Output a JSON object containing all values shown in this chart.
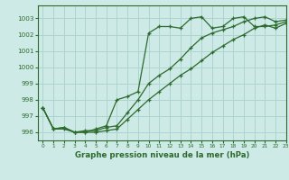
{
  "background_color": "#ceeae7",
  "grid_color": "#add4d0",
  "line_color": "#2d6a2d",
  "series": {
    "line1": [
      997.5,
      996.2,
      996.3,
      996.0,
      996.0,
      996.2,
      996.4,
      998.0,
      998.2,
      998.5,
      1002.1,
      1002.5,
      1002.5,
      1002.4,
      1003.0,
      1003.1,
      1002.4,
      1002.5,
      1003.0,
      1003.1,
      1002.5,
      1002.5,
      1002.6,
      1002.8
    ],
    "line2": [
      997.5,
      996.2,
      996.3,
      996.0,
      996.1,
      996.1,
      996.3,
      996.4,
      997.2,
      998.0,
      999.0,
      999.5,
      999.9,
      1000.5,
      1001.2,
      1001.8,
      1002.1,
      1002.3,
      1002.5,
      1002.8,
      1003.0,
      1003.1,
      1002.8,
      1002.9
    ],
    "line3": [
      997.5,
      996.2,
      996.2,
      996.0,
      996.0,
      996.0,
      996.1,
      996.2,
      996.8,
      997.4,
      998.0,
      998.5,
      999.0,
      999.5,
      999.9,
      1000.4,
      1000.9,
      1001.3,
      1001.7,
      1002.0,
      1002.4,
      1002.6,
      1002.4,
      1002.7
    ]
  },
  "xlim": [
    -0.5,
    23
  ],
  "ylim": [
    995.5,
    1003.8
  ],
  "yticks": [
    996,
    997,
    998,
    999,
    1000,
    1001,
    1002,
    1003
  ],
  "xticks": [
    0,
    1,
    2,
    3,
    4,
    5,
    6,
    7,
    8,
    9,
    10,
    11,
    12,
    13,
    14,
    15,
    16,
    17,
    18,
    19,
    20,
    21,
    22,
    23
  ],
  "xlabel": "Graphe pression niveau de la mer (hPa)",
  "marker": "+"
}
